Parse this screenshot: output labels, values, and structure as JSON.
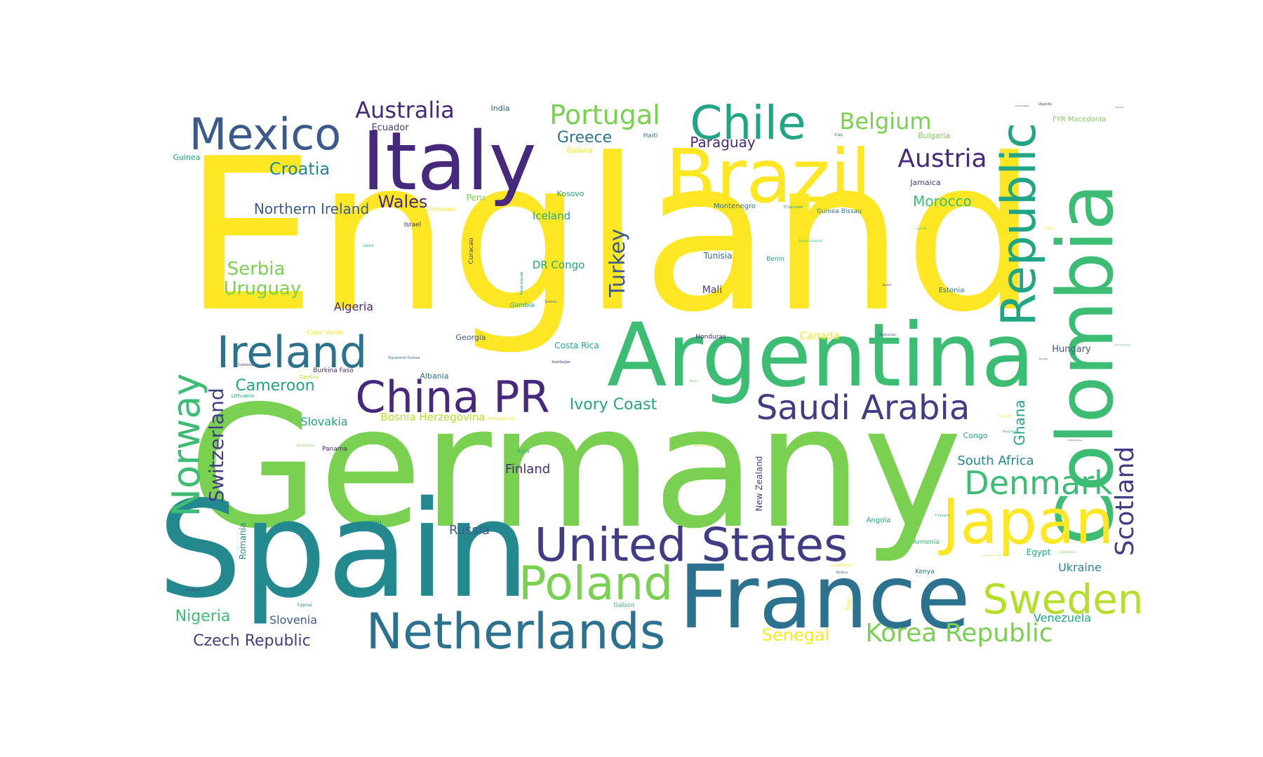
{
  "palette": {
    "purple": "#46287c",
    "indigo": "#413d84",
    "blue": "#3b5a8c",
    "teal_blue": "#2c728e",
    "teal": "#23898e",
    "green_teal": "#21a585",
    "green": "#3dbc74",
    "light_green": "#7ad151",
    "lime": "#b5de2b",
    "yellow": "#fde725"
  },
  "words": [
    {
      "text": "England",
      "color": "#fde725"
    },
    {
      "text": "Germany",
      "color": "#7ad151"
    },
    {
      "text": "Spain",
      "color": "#23898e"
    },
    {
      "text": "Argentina",
      "color": "#3dbc74"
    },
    {
      "text": "France",
      "color": "#2c728e"
    },
    {
      "text": "Italy",
      "color": "#46287c"
    },
    {
      "text": "Brazil",
      "color": "#fde725"
    },
    {
      "text": "Colombia",
      "color": "#3dbc74"
    },
    {
      "text": "Republic",
      "color": "#21a585"
    },
    {
      "text": "Japan",
      "color": "#fde725"
    },
    {
      "text": "Netherlands",
      "color": "#2c728e"
    },
    {
      "text": "United States",
      "color": "#413d84"
    },
    {
      "text": "Poland",
      "color": "#7ad151"
    },
    {
      "text": "Mexico",
      "color": "#3b5a8c"
    },
    {
      "text": "Chile",
      "color": "#21a585"
    },
    {
      "text": "Ireland",
      "color": "#2c728e"
    },
    {
      "text": "China PR",
      "color": "#46287c"
    },
    {
      "text": "Sweden",
      "color": "#b5de2b"
    },
    {
      "text": "Norway",
      "color": "#3dbc74"
    },
    {
      "text": "Saudi Arabia",
      "color": "#413d84"
    },
    {
      "text": "Denmark",
      "color": "#3dbc74"
    },
    {
      "text": "Korea Republic",
      "color": "#7ad151"
    },
    {
      "text": "Scotland",
      "color": "#413d84"
    },
    {
      "text": "Portugal",
      "color": "#7ad151"
    },
    {
      "text": "Australia",
      "color": "#46287c"
    },
    {
      "text": "Belgium",
      "color": "#7ad151"
    },
    {
      "text": "Austria",
      "color": "#46287c"
    },
    {
      "text": "Switzerland",
      "color": "#413d84"
    },
    {
      "text": "Turkey",
      "color": "#3b5a8c"
    },
    {
      "text": "Croatia",
      "color": "#23898e"
    },
    {
      "text": "Serbia",
      "color": "#7ad151"
    },
    {
      "text": "Uruguay",
      "color": "#7ad151"
    },
    {
      "text": "Wales",
      "color": "#46287c"
    },
    {
      "text": "Greece",
      "color": "#2c728e"
    },
    {
      "text": "Northern Ireland",
      "color": "#3b5a8c"
    },
    {
      "text": "Ivory Coast",
      "color": "#21a585"
    },
    {
      "text": "Cameroon",
      "color": "#21a585"
    },
    {
      "text": "Czech Republic",
      "color": "#413d84"
    },
    {
      "text": "Nigeria",
      "color": "#3dbc74"
    },
    {
      "text": "Senegal",
      "color": "#fde725"
    },
    {
      "text": "Morocco",
      "color": "#3dbc74"
    },
    {
      "text": "Paraguay",
      "color": "#46287c"
    },
    {
      "text": "Ghana",
      "color": "#21a585"
    },
    {
      "text": "South Africa",
      "color": "#23898e"
    },
    {
      "text": "Russia",
      "color": "#3b5a8c"
    },
    {
      "text": "Finland",
      "color": "#46287c"
    },
    {
      "text": "Slovakia",
      "color": "#21a585"
    },
    {
      "text": "Slovenia",
      "color": "#3b5a8c"
    },
    {
      "text": "Algeria",
      "color": "#46287c"
    },
    {
      "text": "Bosnia Herzegovina",
      "color": "#b5de2b"
    },
    {
      "text": "Ukraine",
      "color": "#23898e"
    },
    {
      "text": "Venezuela",
      "color": "#21a585"
    },
    {
      "text": "New Zealand",
      "color": "#413d84"
    },
    {
      "text": "Romania",
      "color": "#23898e"
    },
    {
      "text": "Iceland",
      "color": "#21a585"
    },
    {
      "text": "DR Congo",
      "color": "#21a585"
    },
    {
      "text": "Ecuador",
      "color": "#413d84"
    },
    {
      "text": "Hungary",
      "color": "#3b5a8c"
    },
    {
      "text": "Canada",
      "color": "#fde725"
    },
    {
      "text": "Costa Rica",
      "color": "#21a585"
    },
    {
      "text": "Mali",
      "color": "#413d84"
    },
    {
      "text": "Tunisia",
      "color": "#2c728e"
    },
    {
      "text": "Egypt",
      "color": "#21a585"
    },
    {
      "text": "Jamaica",
      "color": "#413d84"
    },
    {
      "text": "Bulgaria",
      "color": "#7ad151"
    },
    {
      "text": "FYR Macedonia",
      "color": "#7ad151"
    },
    {
      "text": "India",
      "color": "#3b5a8c"
    },
    {
      "text": "Guinea",
      "color": "#21a585"
    },
    {
      "text": "Peru",
      "color": "#7ad151"
    },
    {
      "text": "Kosovo",
      "color": "#21a585"
    },
    {
      "text": "Bolivia",
      "color": "#fde725"
    },
    {
      "text": "Montenegro",
      "color": "#2c728e"
    },
    {
      "text": "Guinea Bissau",
      "color": "#2c728e"
    },
    {
      "text": "Israel",
      "color": "#46287c"
    },
    {
      "text": "Zimbabwe",
      "color": "#fde725"
    },
    {
      "text": "Georgia",
      "color": "#3b5a8c"
    },
    {
      "text": "Albania",
      "color": "#2c728e"
    },
    {
      "text": "Burkina Faso",
      "color": "#46287c"
    },
    {
      "text": "Zambia",
      "color": "#b5de2b"
    },
    {
      "text": "Lithuania",
      "color": "#21a585"
    },
    {
      "text": "Cape Verde",
      "color": "#fde725"
    },
    {
      "text": "Panama",
      "color": "#46287c"
    },
    {
      "text": "Iran",
      "color": "#23898e"
    },
    {
      "text": "Gambia",
      "color": "#21a585"
    },
    {
      "text": "Honduras",
      "color": "#46287c"
    },
    {
      "text": "Estonia",
      "color": "#2c728e"
    },
    {
      "text": "Benin",
      "color": "#21a585"
    },
    {
      "text": "Congo",
      "color": "#21a585"
    },
    {
      "text": "Angola",
      "color": "#21a585"
    },
    {
      "text": "Armenia",
      "color": "#3dbc74"
    },
    {
      "text": "Kenya",
      "color": "#2c728e"
    },
    {
      "text": "Haiti",
      "color": "#2c728e"
    },
    {
      "text": "Syria",
      "color": "#21a585"
    },
    {
      "text": "Gabon",
      "color": "#3dbc74"
    },
    {
      "text": "Cyprus",
      "color": "#2c728e"
    },
    {
      "text": "Madagascar",
      "color": "#fde725"
    },
    {
      "text": "Curacao",
      "color": "#46287c"
    },
    {
      "text": "Togo",
      "color": "#fde725"
    },
    {
      "text": "Iraq",
      "color": "#2c728e"
    },
    {
      "text": "Uganda",
      "color": "#413d84"
    },
    {
      "text": "Latvia",
      "color": "#21a585"
    },
    {
      "text": "El Salvador",
      "color": "#21a585"
    },
    {
      "text": "Faroe Islands",
      "color": "#23898e"
    },
    {
      "text": "Equatorial Guinea",
      "color": "#2c728e"
    },
    {
      "text": "Azerbaijan",
      "color": "#413d84"
    },
    {
      "text": "Comoros",
      "color": "#46287c"
    },
    {
      "text": "Sierra Leone",
      "color": "#7ad151"
    },
    {
      "text": "Mauritania",
      "color": "#413d84"
    },
    {
      "text": "Luxembourg",
      "color": "#fde725"
    },
    {
      "text": "Moldova",
      "color": "#3b5a8c"
    },
    {
      "text": "Thailand",
      "color": "#3dbc74"
    },
    {
      "text": "Antigua Barbuda",
      "color": "#3dbc74"
    },
    {
      "text": "Afghanistan",
      "color": "#413d84"
    },
    {
      "text": "Trinidad Tobago",
      "color": "#3dbc74"
    },
    {
      "text": "Liechtenstein",
      "color": "#413d84"
    },
    {
      "text": "Burundi",
      "color": "#3b5a8c"
    },
    {
      "text": "Sudan",
      "color": "#413d84"
    },
    {
      "text": "Namibia",
      "color": "#3b5a8c"
    },
    {
      "text": "Mozambique",
      "color": "#413d84"
    },
    {
      "text": "New Caledonia",
      "color": "#b5de2b"
    },
    {
      "text": "Saint Kitts",
      "color": "#21a585"
    },
    {
      "text": "Guadeloupe",
      "color": "#21a585"
    },
    {
      "text": "Central African Republic",
      "color": "#b5de2b"
    },
    {
      "text": "Libya",
      "color": "#fde725"
    },
    {
      "text": "Malta",
      "color": "#7ad151"
    },
    {
      "text": "Hong Kong",
      "color": "#21a585"
    },
    {
      "text": "Tanzania",
      "color": "#3b5a8c"
    },
    {
      "text": "Guatemala",
      "color": "#7ad151"
    },
    {
      "text": "Suriname",
      "color": "#fde725"
    }
  ]
}
